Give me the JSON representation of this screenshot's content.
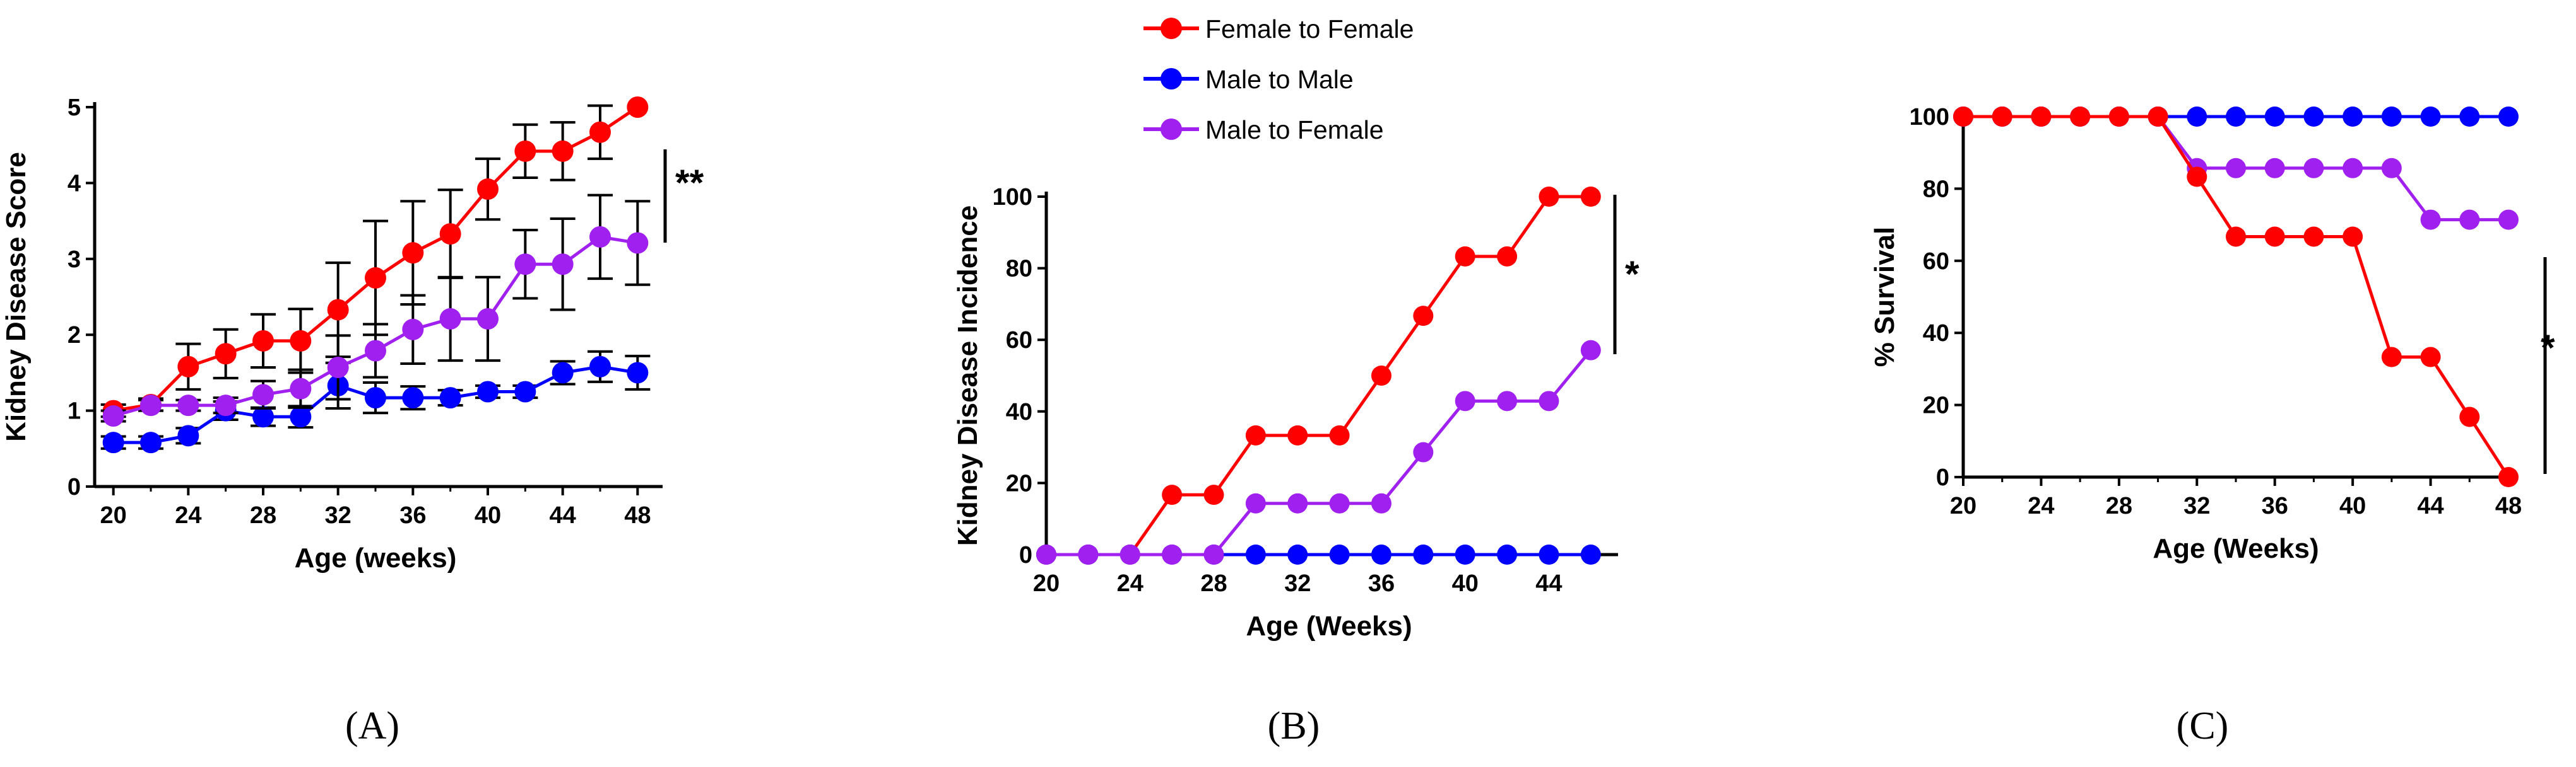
{
  "legend": [
    {
      "name": "Female to Female",
      "color": "#ff0000"
    },
    {
      "name": "Male to Male",
      "color": "#0000ff"
    },
    {
      "name": "Male to Female",
      "color": "#a020f0"
    }
  ],
  "chart_data": [
    {
      "panel": "(A)",
      "type": "line",
      "xlabel": "Age (weeks)",
      "ylabel": "Kidney Disease Score",
      "xlim": [
        19,
        49
      ],
      "ylim": [
        0,
        5
      ],
      "xticks": [
        20,
        24,
        28,
        32,
        36,
        40,
        44,
        48
      ],
      "yticks": [
        0,
        1,
        2,
        3,
        4,
        5
      ],
      "x": [
        20,
        22,
        24,
        26,
        28,
        30,
        32,
        34,
        36,
        38,
        40,
        42,
        44,
        46,
        48
      ],
      "series": [
        {
          "name": "Female to Female",
          "color": "#ff0000",
          "values": [
            1.0,
            1.08,
            1.58,
            1.75,
            1.92,
            1.92,
            2.33,
            2.75,
            3.08,
            3.33,
            3.92,
            4.42,
            4.42,
            4.67,
            5.0
          ],
          "errors": [
            0.08,
            0.08,
            0.3,
            0.32,
            0.35,
            0.42,
            0.62,
            0.75,
            0.68,
            0.58,
            0.4,
            0.35,
            0.38,
            0.35,
            0.0
          ]
        },
        {
          "name": "Male to Male",
          "color": "#0000ff",
          "values": [
            0.58,
            0.58,
            0.67,
            1.0,
            0.92,
            0.92,
            1.33,
            1.17,
            1.17,
            1.17,
            1.25,
            1.25,
            1.5,
            1.58,
            1.5
          ],
          "errors": [
            0.08,
            0.08,
            0.1,
            0.12,
            0.12,
            0.14,
            0.3,
            0.2,
            0.15,
            0.1,
            0.08,
            0.08,
            0.15,
            0.2,
            0.22
          ]
        },
        {
          "name": "Male to Female",
          "color": "#a020f0",
          "values": [
            0.93,
            1.07,
            1.07,
            1.07,
            1.21,
            1.29,
            1.57,
            1.79,
            2.07,
            2.21,
            2.21,
            2.93,
            2.93,
            3.29,
            3.21
          ],
          "errors": [
            0.07,
            0.07,
            0.07,
            0.1,
            0.18,
            0.25,
            0.42,
            0.35,
            0.45,
            0.55,
            0.55,
            0.45,
            0.6,
            0.55,
            0.55
          ]
        }
      ],
      "significance": "**"
    },
    {
      "panel": "(B)",
      "type": "line",
      "xlabel": "Age (Weeks)",
      "ylabel": "Kidney Disease Incidence",
      "xlim": [
        20,
        47
      ],
      "ylim": [
        0,
        100
      ],
      "xticks": [
        20,
        24,
        28,
        32,
        36,
        40,
        44
      ],
      "yticks": [
        0,
        20,
        40,
        60,
        80,
        100
      ],
      "x": [
        20,
        22,
        24,
        26,
        28,
        30,
        32,
        34,
        36,
        38,
        40,
        42,
        44,
        46
      ],
      "series": [
        {
          "name": "Female to Female",
          "color": "#ff0000",
          "values": [
            0,
            0,
            0,
            16.7,
            16.7,
            33.3,
            33.3,
            33.3,
            50,
            66.7,
            83.3,
            83.3,
            100,
            100
          ]
        },
        {
          "name": "Male to Male",
          "color": "#0000ff",
          "values": [
            0,
            0,
            0,
            0,
            0,
            0,
            0,
            0,
            0,
            0,
            0,
            0,
            0,
            0
          ]
        },
        {
          "name": "Male to Female",
          "color": "#a020f0",
          "values": [
            0,
            0,
            0,
            0,
            0,
            14.3,
            14.3,
            14.3,
            14.3,
            28.6,
            42.9,
            42.9,
            42.9,
            57.1
          ]
        }
      ],
      "significance": "*"
    },
    {
      "panel": "(C)",
      "type": "line",
      "xlabel": "Age (Weeks)",
      "ylabel": "% Survival",
      "xlim": [
        20,
        48
      ],
      "ylim": [
        0,
        100
      ],
      "xticks": [
        20,
        24,
        28,
        32,
        36,
        40,
        44,
        48
      ],
      "yticks": [
        0,
        20,
        40,
        60,
        80,
        100
      ],
      "x": [
        20,
        22,
        24,
        26,
        28,
        30,
        32,
        34,
        36,
        38,
        40,
        42,
        44,
        46,
        48
      ],
      "series": [
        {
          "name": "Male to Male",
          "color": "#0000ff",
          "values": [
            100,
            100,
            100,
            100,
            100,
            100,
            100,
            100,
            100,
            100,
            100,
            100,
            100,
            100,
            100
          ]
        },
        {
          "name": "Male to Female",
          "color": "#a020f0",
          "values": [
            100,
            100,
            100,
            100,
            100,
            100,
            85.7,
            85.7,
            85.7,
            85.7,
            85.7,
            85.7,
            71.4,
            71.4,
            71.4
          ]
        },
        {
          "name": "Female to Female",
          "color": "#ff0000",
          "values": [
            100,
            100,
            100,
            100,
            100,
            100,
            83.3,
            66.7,
            66.7,
            66.7,
            66.7,
            33.3,
            33.3,
            16.7,
            0
          ]
        }
      ],
      "significance": "*"
    }
  ]
}
